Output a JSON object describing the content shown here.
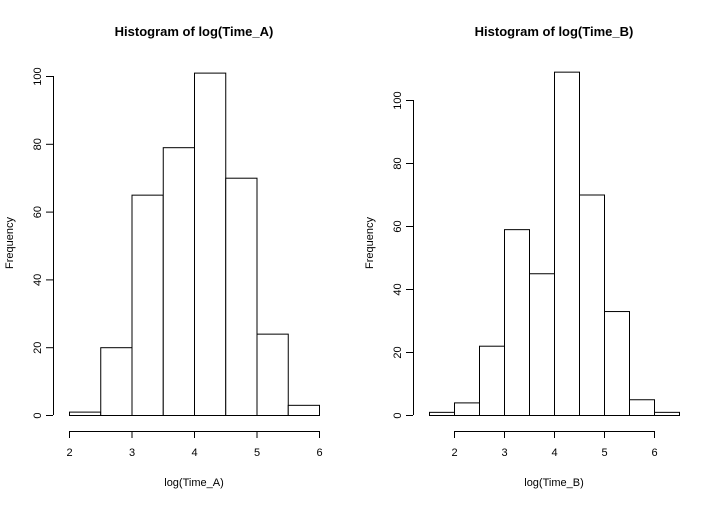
{
  "chart_data": [
    {
      "type": "bar",
      "title": "Histogram of log(Time_A)",
      "xlabel": "log(Time_A)",
      "ylabel": "Frequency",
      "bin_edges": [
        2.0,
        2.5,
        3.0,
        3.5,
        4.0,
        4.5,
        5.0,
        5.5,
        6.0
      ],
      "values": [
        1,
        20,
        65,
        79,
        101,
        70,
        24,
        3
      ],
      "xlim": [
        2,
        6
      ],
      "ylim": [
        0,
        100
      ],
      "x_ticks": [
        2,
        3,
        4,
        5,
        6
      ],
      "x_tick_labels": [
        "2",
        "3",
        "4",
        "5",
        "6"
      ],
      "y_ticks": [
        0,
        20,
        40,
        60,
        80,
        100
      ],
      "y_tick_labels": [
        "0",
        "20",
        "40",
        "60",
        "80",
        "100"
      ],
      "grid": false
    },
    {
      "type": "bar",
      "title": "Histogram of log(Time_B)",
      "xlabel": "log(Time_B)",
      "ylabel": "Frequency",
      "bin_edges": [
        1.5,
        2.0,
        2.5,
        3.0,
        3.5,
        4.0,
        4.5,
        5.0,
        5.5,
        6.0,
        6.5
      ],
      "values": [
        1,
        4,
        22,
        59,
        45,
        109,
        70,
        33,
        5,
        1
      ],
      "xlim": [
        2,
        6
      ],
      "ylim": [
        0,
        100
      ],
      "x_ticks": [
        2,
        3,
        4,
        5,
        6
      ],
      "x_tick_labels": [
        "2",
        "3",
        "4",
        "5",
        "6"
      ],
      "y_ticks": [
        0,
        20,
        40,
        60,
        80,
        100
      ],
      "y_tick_labels": [
        "0",
        "20",
        "40",
        "60",
        "80",
        "100"
      ],
      "grid": false
    }
  ]
}
